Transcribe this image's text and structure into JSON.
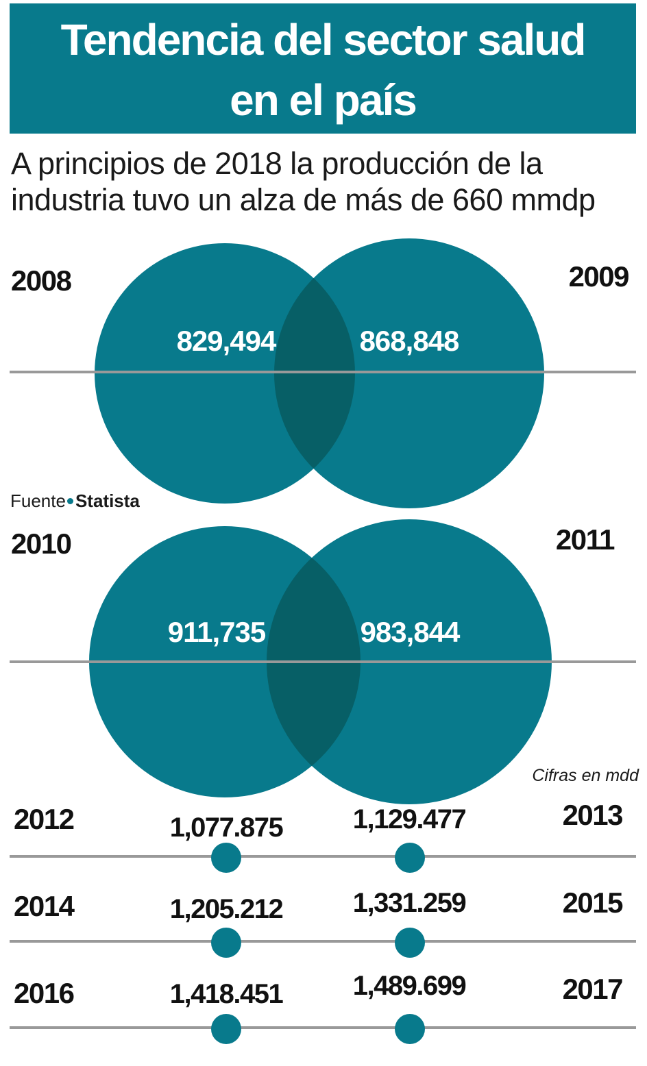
{
  "title": "Tendencia del sector salud en el país",
  "title_lines": [
    "Tendencia del sector salud",
    "en el país"
  ],
  "subtitle_lines": [
    "A principios de 2018 la producción de la",
    "industria tuvo un alza de más de 660 mmdp"
  ],
  "source": {
    "label": "Fuente",
    "name": "Statista"
  },
  "unit_note": "Cifras en mdd",
  "colors": {
    "accent": "#087a8c",
    "overlap": "#075f66",
    "rule": "#999999"
  },
  "chart_data": {
    "type": "table",
    "unit": "Cifras en mdd",
    "points": [
      {
        "year": "2008",
        "value": 829494,
        "label": "829,494"
      },
      {
        "year": "2009",
        "value": 868848,
        "label": "868,848"
      },
      {
        "year": "2010",
        "value": 911735,
        "label": "911,735"
      },
      {
        "year": "2011",
        "value": 983844,
        "label": "983,844"
      },
      {
        "year": "2012",
        "value": 1077875,
        "label": "1,077.875"
      },
      {
        "year": "2013",
        "value": 1129477,
        "label": "1,129.477"
      },
      {
        "year": "2014",
        "value": 1205212,
        "label": "1,205.212"
      },
      {
        "year": "2015",
        "value": 1331259,
        "label": "1,331.259"
      },
      {
        "year": "2016",
        "value": 1418451,
        "label": "1,418.451"
      },
      {
        "year": "2017",
        "value": 1489699,
        "label": "1,489.699"
      }
    ]
  }
}
